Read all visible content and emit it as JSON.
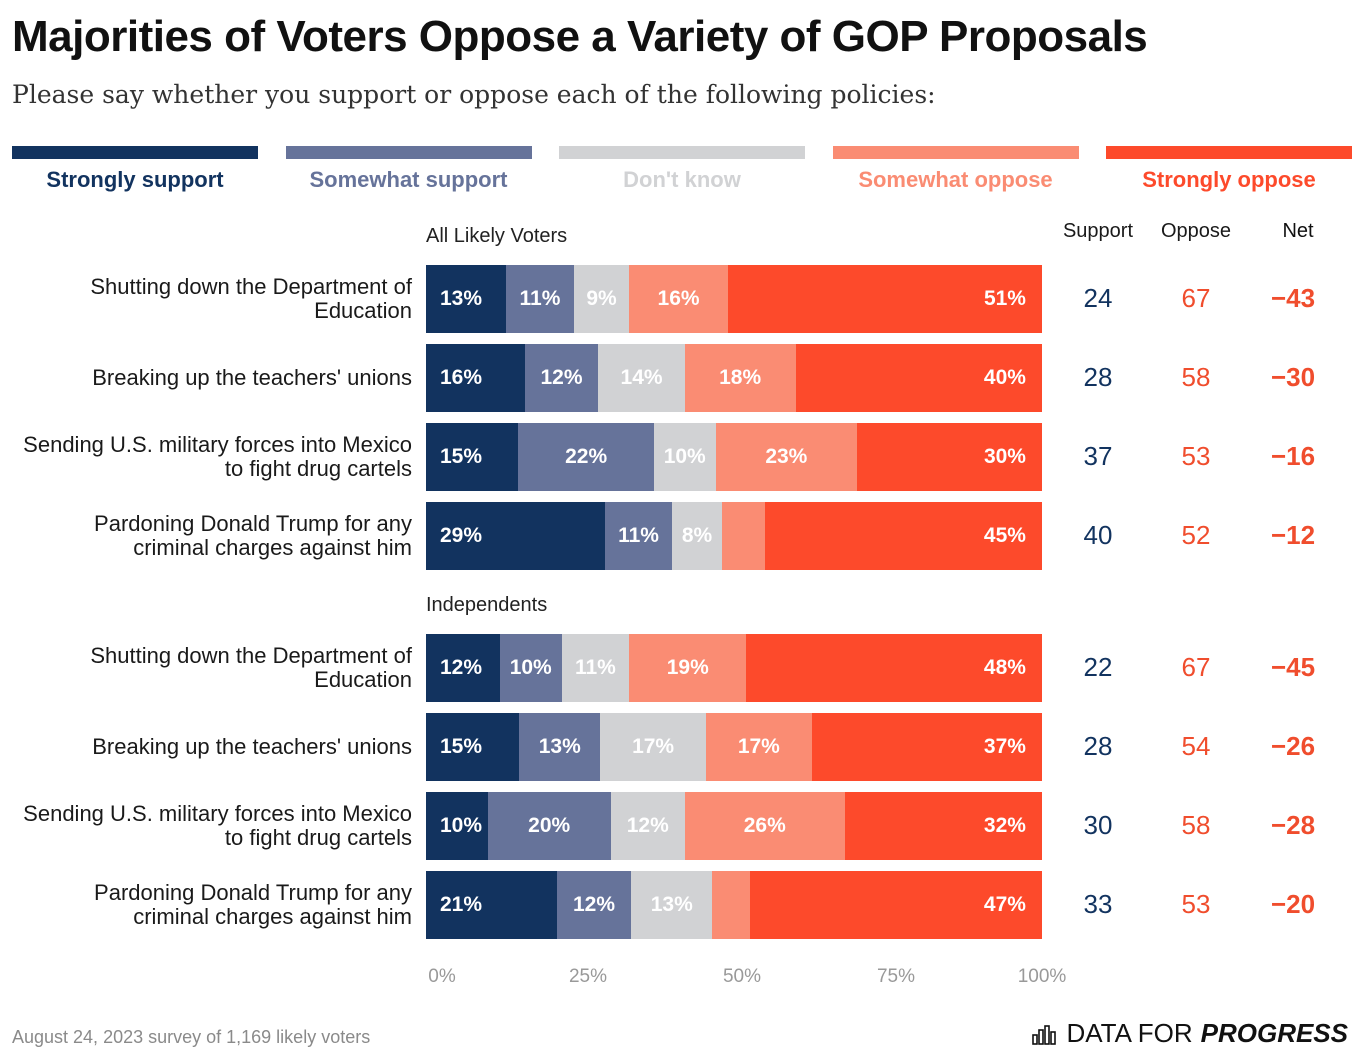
{
  "title": "Majorities of Voters Oppose a Variety of GOP Proposals",
  "subtitle": "Please say whether you support or oppose each of the following policies:",
  "colors": {
    "strongly_support": "#12335f",
    "somewhat_support": "#66739a",
    "dont_know": "#d1d2d4",
    "somewhat_oppose": "#fa8c73",
    "strongly_oppose": "#fd4a2b",
    "support_text": "#12335f",
    "oppose_text": "#f04d2d"
  },
  "legend": [
    "Strongly support",
    "Somewhat support",
    "Don't know",
    "Somewhat oppose",
    "Strongly oppose"
  ],
  "columns": {
    "support": "Support",
    "oppose": "Oppose",
    "net": "Net"
  },
  "footnote": "August 24, 2023 survey of 1,169 likely voters",
  "brand": {
    "part1": "DATA FOR",
    "part2": "PROGRESS"
  },
  "chart_data": {
    "type": "bar",
    "orientation": "horizontal-stacked-100",
    "xlim": [
      0,
      100
    ],
    "x_ticks": [
      "0%",
      "25%",
      "50%",
      "75%",
      "100%"
    ],
    "series_names": [
      "Strongly support",
      "Somewhat support",
      "Don't know",
      "Somewhat oppose",
      "Strongly oppose"
    ],
    "groups": [
      {
        "name": "All Likely Voters",
        "rows": [
          {
            "label": "Shutting down the Department of Education",
            "values": [
              13,
              11,
              9,
              16,
              51
            ],
            "support": "24",
            "oppose": "67",
            "net": "−43"
          },
          {
            "label": "Breaking up the teachers' unions",
            "values": [
              16,
              12,
              14,
              18,
              40
            ],
            "support": "28",
            "oppose": "58",
            "net": "−30"
          },
          {
            "label": "Sending U.S. military forces into Mexico to fight drug cartels",
            "values": [
              15,
              22,
              10,
              23,
              30
            ],
            "support": "37",
            "oppose": "53",
            "net": "−16"
          },
          {
            "label": "Pardoning Donald Trump for any criminal charges against him",
            "values": [
              29,
              11,
              8,
              7,
              45
            ],
            "support": "40",
            "oppose": "52",
            "net": "−12"
          }
        ]
      },
      {
        "name": "Independents",
        "rows": [
          {
            "label": "Shutting down the Department of Education",
            "values": [
              12,
              10,
              11,
              19,
              48
            ],
            "support": "22",
            "oppose": "67",
            "net": "−45"
          },
          {
            "label": "Breaking up the teachers' unions",
            "values": [
              15,
              13,
              17,
              17,
              37
            ],
            "support": "28",
            "oppose": "54",
            "net": "−26"
          },
          {
            "label": "Sending U.S. military forces into Mexico to fight drug cartels",
            "values": [
              10,
              20,
              12,
              26,
              32
            ],
            "support": "30",
            "oppose": "58",
            "net": "−28"
          },
          {
            "label": "Pardoning Donald Trump for any criminal charges against him",
            "values": [
              21,
              12,
              13,
              6,
              47
            ],
            "support": "33",
            "oppose": "53",
            "net": "−20"
          }
        ]
      }
    ]
  }
}
